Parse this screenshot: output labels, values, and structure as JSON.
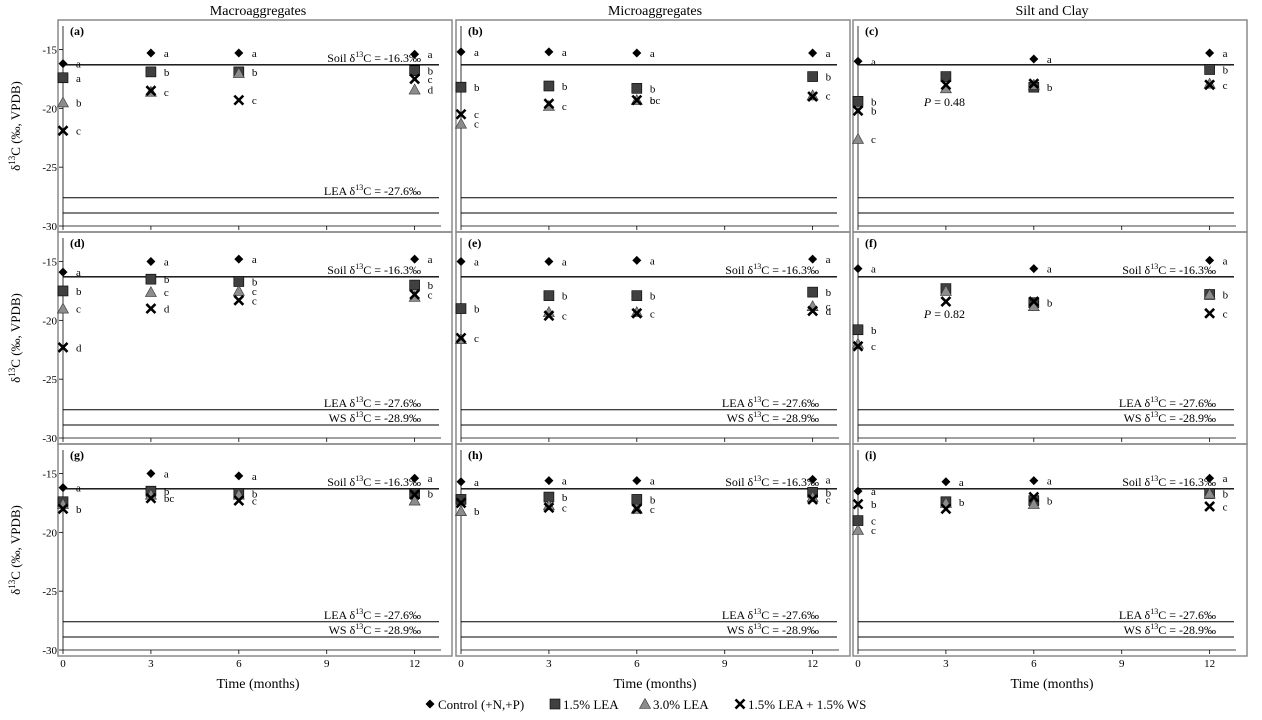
{
  "figure": {
    "column_titles": [
      "Macroaggregates",
      "Microaggregates",
      "Silt and Clay"
    ],
    "ylabel_prefix": "δ",
    "ylabel_sup": "13",
    "ylabel_suffix": "C (‰, VPDB)",
    "xlabel": "Time (months)",
    "legend": [
      {
        "label": "Control (+N,+P)",
        "marker": "diamond"
      },
      {
        "label": "1.5% LEA",
        "marker": "square"
      },
      {
        "label": "3.0% LEA",
        "marker": "triangle"
      },
      {
        "label": "1.5% LEA + 1.5% WS",
        "marker": "cross"
      }
    ],
    "colors": {
      "diamond": "#000000",
      "square": "#404040",
      "triangle": "#8c8c8c",
      "cross": "#000000",
      "frame": "#8a8a8a"
    }
  },
  "chart_data": [
    {
      "type": "scatter",
      "panel": "(a)",
      "x": [
        0,
        3,
        6,
        12
      ],
      "xlim": [
        0,
        12.9
      ],
      "ylim": [
        -30,
        -13
      ],
      "yticks": [
        -15,
        -20,
        -25,
        -30
      ],
      "xticks": [
        0,
        3,
        6,
        9,
        12
      ],
      "show_yticks": true,
      "show_xticks": false,
      "series": [
        {
          "name": "Control (+N,+P)",
          "marker": "diamond",
          "values": [
            -16.2,
            -15.3,
            -15.3,
            -15.4
          ],
          "letters": [
            "a",
            "a",
            "a",
            "a"
          ]
        },
        {
          "name": "1.5% LEA",
          "marker": "square",
          "values": [
            -17.4,
            -16.9,
            -16.9,
            -16.8
          ],
          "letters": [
            "a",
            "b",
            "b",
            "b"
          ]
        },
        {
          "name": "3.0% LEA",
          "marker": "triangle",
          "values": [
            -19.5,
            -18.6,
            -17.0,
            -18.4
          ],
          "letters": [
            "b",
            "c",
            "",
            "d"
          ]
        },
        {
          "name": "1.5% LEA + 1.5% WS",
          "marker": "cross",
          "values": [
            -21.9,
            -18.5,
            -19.3,
            -17.5
          ],
          "letters": [
            "c",
            "",
            "c",
            "c"
          ]
        }
      ],
      "hlines": [
        {
          "y": -16.3,
          "label_pre": "Soil δ",
          "label_sup": "13",
          "label_post": "C = -16.3‰"
        },
        {
          "y": -27.6,
          "label_pre": "LEA δ",
          "label_sup": "13",
          "label_post": "C = -27.6‰"
        },
        {
          "y": -28.9,
          "label_pre": "",
          "label_sup": "",
          "label_post": ""
        }
      ],
      "pnote": ""
    },
    {
      "type": "scatter",
      "panel": "(b)",
      "x": [
        0,
        3,
        6,
        12
      ],
      "xlim": [
        0,
        12.9
      ],
      "ylim": [
        -30,
        -13
      ],
      "yticks": [
        -15,
        -20,
        -25,
        -30
      ],
      "xticks": [
        0,
        3,
        6,
        9,
        12
      ],
      "show_yticks": false,
      "show_xticks": false,
      "series": [
        {
          "name": "Control (+N,+P)",
          "marker": "diamond",
          "values": [
            -15.2,
            -15.2,
            -15.3,
            -15.3
          ],
          "letters": [
            "a",
            "a",
            "a",
            "a"
          ]
        },
        {
          "name": "1.5% LEA",
          "marker": "square",
          "values": [
            -18.2,
            -18.1,
            -18.3,
            -17.3
          ],
          "letters": [
            "b",
            "b",
            "b",
            "b"
          ]
        },
        {
          "name": "3.0% LEA",
          "marker": "triangle",
          "values": [
            -21.3,
            -19.8,
            -19.3,
            -18.9
          ],
          "letters": [
            "c",
            "c",
            "bc",
            "c"
          ]
        },
        {
          "name": "1.5% LEA + 1.5% WS",
          "marker": "cross",
          "values": [
            -20.5,
            -19.6,
            -19.3,
            -19.0
          ],
          "letters": [
            "c",
            "",
            "c",
            ""
          ]
        }
      ],
      "hlines": [
        {
          "y": -16.3,
          "label_pre": "",
          "label_sup": "",
          "label_post": ""
        },
        {
          "y": -27.6,
          "label_pre": "",
          "label_sup": "",
          "label_post": ""
        },
        {
          "y": -28.9,
          "label_pre": "",
          "label_sup": "",
          "label_post": ""
        }
      ],
      "pnote": ""
    },
    {
      "type": "scatter",
      "panel": "(c)",
      "x": [
        0,
        3,
        6,
        12
      ],
      "xlim": [
        0,
        12.9
      ],
      "ylim": [
        -30,
        -13
      ],
      "yticks": [
        -15,
        -20,
        -25,
        -30
      ],
      "xticks": [
        0,
        3,
        6,
        9,
        12
      ],
      "show_yticks": false,
      "show_xticks": false,
      "series": [
        {
          "name": "Control (+N,+P)",
          "marker": "diamond",
          "values": [
            -16.0,
            null,
            -15.8,
            -15.3
          ],
          "letters": [
            "a",
            "",
            "a",
            "a"
          ]
        },
        {
          "name": "1.5% LEA",
          "marker": "square",
          "values": [
            -19.4,
            -17.3,
            -18.2,
            -16.7
          ],
          "letters": [
            "b",
            "",
            "b",
            "b"
          ]
        },
        {
          "name": "3.0% LEA",
          "marker": "triangle",
          "values": [
            -22.6,
            -18.3,
            -18.0,
            -17.9
          ],
          "letters": [
            "c",
            "",
            "",
            ""
          ]
        },
        {
          "name": "1.5% LEA + 1.5% WS",
          "marker": "cross",
          "values": [
            -20.2,
            -18.0,
            -17.9,
            -18.0
          ],
          "letters": [
            "b",
            "",
            "",
            "c"
          ]
        }
      ],
      "hlines": [
        {
          "y": -16.3,
          "label_pre": "",
          "label_sup": "",
          "label_post": ""
        },
        {
          "y": -27.6,
          "label_pre": "",
          "label_sup": "",
          "label_post": ""
        },
        {
          "y": -28.9,
          "label_pre": "",
          "label_sup": "",
          "label_post": ""
        }
      ],
      "pnote": "P = 0.48"
    },
    {
      "type": "scatter",
      "panel": "(d)",
      "x": [
        0,
        3,
        6,
        12
      ],
      "xlim": [
        0,
        12.9
      ],
      "ylim": [
        -30,
        -13
      ],
      "yticks": [
        -15,
        -20,
        -25,
        -30
      ],
      "xticks": [
        0,
        3,
        6,
        9,
        12
      ],
      "show_yticks": true,
      "show_xticks": false,
      "series": [
        {
          "name": "Control (+N,+P)",
          "marker": "diamond",
          "values": [
            -15.9,
            -15.0,
            -14.8,
            -14.8
          ],
          "letters": [
            "a",
            "a",
            "a",
            "a"
          ]
        },
        {
          "name": "1.5% LEA",
          "marker": "square",
          "values": [
            -17.5,
            -16.5,
            -16.7,
            -17.0
          ],
          "letters": [
            "b",
            "b",
            "b",
            "b"
          ]
        },
        {
          "name": "3.0% LEA",
          "marker": "triangle",
          "values": [
            -19.0,
            -17.6,
            -17.5,
            -18.0
          ],
          "letters": [
            "c",
            "c",
            "c",
            ""
          ]
        },
        {
          "name": "1.5% LEA + 1.5% WS",
          "marker": "cross",
          "values": [
            -22.3,
            -19.0,
            -18.3,
            -17.8
          ],
          "letters": [
            "d",
            "d",
            "c",
            "c"
          ]
        }
      ],
      "hlines": [
        {
          "y": -16.3,
          "label_pre": "Soil δ",
          "label_sup": "13",
          "label_post": "C = -16.3‰"
        },
        {
          "y": -27.6,
          "label_pre": "LEA δ",
          "label_sup": "13",
          "label_post": "C = -27.6‰"
        },
        {
          "y": -28.9,
          "label_pre": "WS δ",
          "label_sup": "13",
          "label_post": "C = -28.9‰"
        }
      ],
      "pnote": ""
    },
    {
      "type": "scatter",
      "panel": "(e)",
      "x": [
        0,
        3,
        6,
        12
      ],
      "xlim": [
        0,
        12.9
      ],
      "ylim": [
        -30,
        -13
      ],
      "yticks": [
        -15,
        -20,
        -25,
        -30
      ],
      "xticks": [
        0,
        3,
        6,
        9,
        12
      ],
      "show_yticks": false,
      "show_xticks": false,
      "series": [
        {
          "name": "Control (+N,+P)",
          "marker": "diamond",
          "values": [
            -15.0,
            -15.0,
            -14.9,
            -14.8
          ],
          "letters": [
            "a",
            "a",
            "a",
            "a"
          ]
        },
        {
          "name": "1.5% LEA",
          "marker": "square",
          "values": [
            -19.0,
            -17.9,
            -17.9,
            -17.6
          ],
          "letters": [
            "b",
            "b",
            "b",
            "b"
          ]
        },
        {
          "name": "3.0% LEA",
          "marker": "triangle",
          "values": [
            -21.6,
            -19.3,
            -19.3,
            -18.8
          ],
          "letters": [
            "",
            "",
            "",
            "c"
          ]
        },
        {
          "name": "1.5% LEA + 1.5% WS",
          "marker": "cross",
          "values": [
            -21.5,
            -19.6,
            -19.4,
            -19.2
          ],
          "letters": [
            "c",
            "c",
            "c",
            "d"
          ]
        }
      ],
      "hlines": [
        {
          "y": -16.3,
          "label_pre": "Soil δ",
          "label_sup": "13",
          "label_post": "C = -16.3‰"
        },
        {
          "y": -27.6,
          "label_pre": "LEA δ",
          "label_sup": "13",
          "label_post": "C = -27.6‰"
        },
        {
          "y": -28.9,
          "label_pre": "WS δ",
          "label_sup": "13",
          "label_post": "C = -28.9‰"
        }
      ],
      "pnote": ""
    },
    {
      "type": "scatter",
      "panel": "(f)",
      "x": [
        0,
        3,
        6,
        12
      ],
      "xlim": [
        0,
        12.9
      ],
      "ylim": [
        -30,
        -13
      ],
      "yticks": [
        -15,
        -20,
        -25,
        -30
      ],
      "xticks": [
        0,
        3,
        6,
        9,
        12
      ],
      "show_yticks": false,
      "show_xticks": false,
      "series": [
        {
          "name": "Control (+N,+P)",
          "marker": "diamond",
          "values": [
            -15.6,
            null,
            -15.6,
            -14.9
          ],
          "letters": [
            "a",
            "",
            "a",
            "a"
          ]
        },
        {
          "name": "1.5% LEA",
          "marker": "square",
          "values": [
            -20.8,
            -17.3,
            -18.5,
            -17.8
          ],
          "letters": [
            "b",
            "",
            "b",
            "b"
          ]
        },
        {
          "name": "3.0% LEA",
          "marker": "triangle",
          "values": [
            -22.0,
            -17.5,
            -18.8,
            -17.8
          ],
          "letters": [
            "",
            "",
            "",
            ""
          ]
        },
        {
          "name": "1.5% LEA + 1.5% WS",
          "marker": "cross",
          "values": [
            -22.2,
            -18.4,
            -18.4,
            -19.4
          ],
          "letters": [
            "c",
            "",
            "",
            "c"
          ]
        }
      ],
      "hlines": [
        {
          "y": -16.3,
          "label_pre": "Soil δ",
          "label_sup": "13",
          "label_post": "C = -16.3‰"
        },
        {
          "y": -27.6,
          "label_pre": "LEA δ",
          "label_sup": "13",
          "label_post": "C = -27.6‰"
        },
        {
          "y": -28.9,
          "label_pre": "WS δ",
          "label_sup": "13",
          "label_post": "C = -28.9‰"
        }
      ],
      "pnote": "P = 0.82"
    },
    {
      "type": "scatter",
      "panel": "(g)",
      "x": [
        0,
        3,
        6,
        12
      ],
      "xlim": [
        0,
        12.9
      ],
      "ylim": [
        -30,
        -13
      ],
      "yticks": [
        -15,
        -20,
        -25,
        -30
      ],
      "xticks": [
        0,
        3,
        6,
        9,
        12
      ],
      "show_yticks": true,
      "show_xticks": true,
      "series": [
        {
          "name": "Control (+N,+P)",
          "marker": "diamond",
          "values": [
            -16.2,
            -15.0,
            -15.2,
            -15.4
          ],
          "letters": [
            "a",
            "a",
            "a",
            "a"
          ]
        },
        {
          "name": "1.5% LEA",
          "marker": "square",
          "values": [
            -17.4,
            -16.5,
            -16.7,
            -16.7
          ],
          "letters": [
            "",
            "b",
            "b",
            "b"
          ]
        },
        {
          "name": "3.0% LEA",
          "marker": "triangle",
          "values": [
            -17.6,
            -16.8,
            -16.8,
            -17.3
          ],
          "letters": [
            "",
            "",
            "",
            ""
          ]
        },
        {
          "name": "1.5% LEA + 1.5% WS",
          "marker": "cross",
          "values": [
            -18.0,
            -17.1,
            -17.3,
            -16.8
          ],
          "letters": [
            "b",
            "bc",
            "c",
            ""
          ]
        }
      ],
      "hlines": [
        {
          "y": -16.3,
          "label_pre": "Soil δ",
          "label_sup": "13",
          "label_post": "C = -16.3‰"
        },
        {
          "y": -27.6,
          "label_pre": "LEA δ",
          "label_sup": "13",
          "label_post": "C = -27.6‰"
        },
        {
          "y": -28.9,
          "label_pre": "WS δ",
          "label_sup": "13",
          "label_post": "C = -28.9‰"
        }
      ],
      "pnote": ""
    },
    {
      "type": "scatter",
      "panel": "(h)",
      "x": [
        0,
        3,
        6,
        12
      ],
      "xlim": [
        0,
        12.9
      ],
      "ylim": [
        -30,
        -13
      ],
      "yticks": [
        -15,
        -20,
        -25,
        -30
      ],
      "xticks": [
        0,
        3,
        6,
        9,
        12
      ],
      "show_yticks": false,
      "show_xticks": true,
      "series": [
        {
          "name": "Control (+N,+P)",
          "marker": "diamond",
          "values": [
            -15.7,
            -15.6,
            -15.6,
            -15.5
          ],
          "letters": [
            "a",
            "a",
            "a",
            "a"
          ]
        },
        {
          "name": "1.5% LEA",
          "marker": "square",
          "values": [
            -17.2,
            -17.0,
            -17.2,
            -16.6
          ],
          "letters": [
            "",
            "b",
            "b",
            "b"
          ]
        },
        {
          "name": "3.0% LEA",
          "marker": "triangle",
          "values": [
            -18.2,
            -17.7,
            -18.0,
            -17.0
          ],
          "letters": [
            "b",
            "",
            "",
            ""
          ]
        },
        {
          "name": "1.5% LEA + 1.5% WS",
          "marker": "cross",
          "values": [
            -17.5,
            -17.9,
            -18.0,
            -17.2
          ],
          "letters": [
            "",
            "c",
            "c",
            "c"
          ]
        }
      ],
      "hlines": [
        {
          "y": -16.3,
          "label_pre": "Soil δ",
          "label_sup": "13",
          "label_post": "C = -16.3‰"
        },
        {
          "y": -27.6,
          "label_pre": "LEA δ",
          "label_sup": "13",
          "label_post": "C = -27.6‰"
        },
        {
          "y": -28.9,
          "label_pre": "WS δ",
          "label_sup": "13",
          "label_post": "C = -28.9‰"
        }
      ],
      "pnote": ""
    },
    {
      "type": "scatter",
      "panel": "(i)",
      "x": [
        0,
        3,
        6,
        12
      ],
      "xlim": [
        0,
        12.9
      ],
      "ylim": [
        -30,
        -13
      ],
      "yticks": [
        -15,
        -20,
        -25,
        -30
      ],
      "xticks": [
        0,
        3,
        6,
        9,
        12
      ],
      "show_yticks": false,
      "show_xticks": true,
      "series": [
        {
          "name": "Control (+N,+P)",
          "marker": "diamond",
          "values": [
            -16.5,
            -15.7,
            -15.6,
            -15.4
          ],
          "letters": [
            "a",
            "a",
            "a",
            "a"
          ]
        },
        {
          "name": "1.5% LEA",
          "marker": "square",
          "values": [
            -19.0,
            -17.4,
            -17.3,
            -16.7
          ],
          "letters": [
            "c",
            "b",
            "b",
            "b"
          ]
        },
        {
          "name": "3.0% LEA",
          "marker": "triangle",
          "values": [
            -19.8,
            -17.5,
            -17.6,
            -16.7
          ],
          "letters": [
            "c",
            "",
            "",
            ""
          ]
        },
        {
          "name": "1.5% LEA + 1.5% WS",
          "marker": "cross",
          "values": [
            -17.6,
            -18.0,
            -17.0,
            -17.8
          ],
          "letters": [
            "b",
            "",
            "",
            "c"
          ]
        }
      ],
      "hlines": [
        {
          "y": -16.3,
          "label_pre": "Soil δ",
          "label_sup": "13",
          "label_post": "C = -16.3‰"
        },
        {
          "y": -27.6,
          "label_pre": "LEA δ",
          "label_sup": "13",
          "label_post": "C = -27.6‰"
        },
        {
          "y": -28.9,
          "label_pre": "WS δ",
          "label_sup": "13",
          "label_post": "C = -28.9‰"
        }
      ],
      "pnote": ""
    }
  ]
}
